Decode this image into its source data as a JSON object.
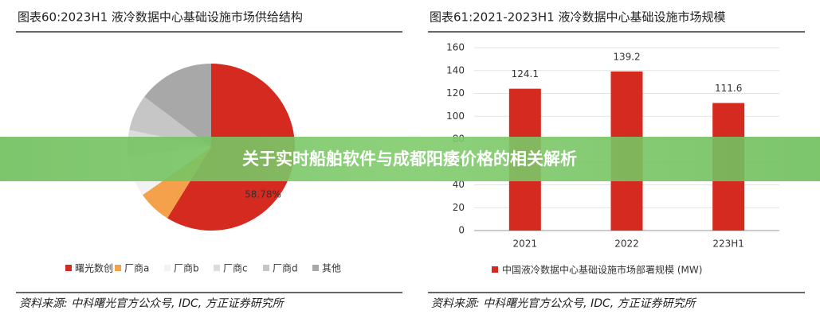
{
  "chart_data": [
    {
      "type": "pie",
      "title": "图表60:2023H1 液冷数据中心基础设施市场供给结构",
      "categories": [
        "曙光数创",
        "厂商a",
        "厂商b",
        "厂商c",
        "厂商d",
        "其他"
      ],
      "values": [
        58.78,
        6.5,
        8,
        5,
        7,
        14.72
      ],
      "value_labels": [
        "58.78%",
        null,
        null,
        null,
        null,
        null
      ],
      "colors": [
        "#d42a1f",
        "#f5a04a",
        "#f2f2f2",
        "#dcdcdc",
        "#c6c6c6",
        "#a8a8a8"
      ],
      "source": "资料来源: 中科曙光官方公众号, IDC, 方正证券研究所"
    },
    {
      "type": "bar",
      "title": "图表61:2021-2023H1 液冷数据中心基础设施市场规模",
      "categories": [
        "2021",
        "2022",
        "223H1"
      ],
      "series": [
        {
          "name": "中国液冷数据中心基础设施市场部署规模 (MW)",
          "color": "#d42a1f",
          "values": [
            124.1,
            139.2,
            111.6
          ]
        }
      ],
      "ylim": [
        0,
        160
      ],
      "yticks": [
        0,
        20,
        40,
        60,
        80,
        100,
        120,
        140,
        160
      ],
      "grid": true,
      "source": "资料来源: 中科曙光官方公众号, IDC, 方正证券研究所"
    }
  ],
  "banner": {
    "title": "关于实时船舶软件与成都阳痿价格的相关解析"
  }
}
